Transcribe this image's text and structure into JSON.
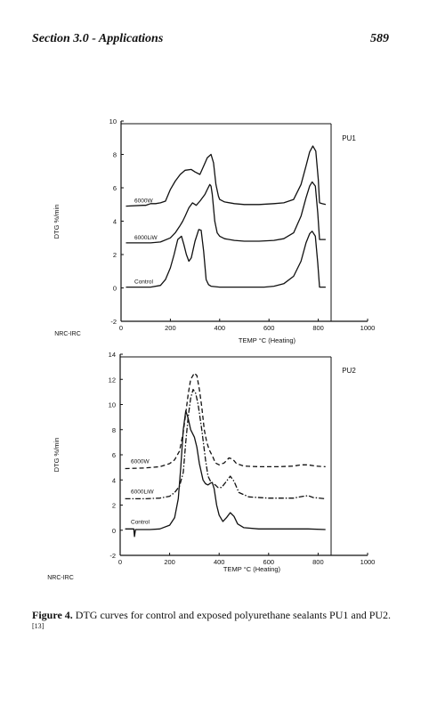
{
  "page": {
    "header_left": "Section 3.0 - Applications",
    "header_right": "589",
    "caption_label": "Figure 4.",
    "caption_text": " DTG curves for control and exposed polyurethane sealants PU1 and PU2.",
    "caption_ref": "[13]"
  },
  "chart_data": [
    {
      "type": "line",
      "panel_label": "PU1",
      "source_label": "NRC-IRC",
      "xlabel": "TEMP °C  (Heating)",
      "ylabel": "DTG %/min",
      "xlim": [
        0,
        1000
      ],
      "ylim": [
        -2,
        10
      ],
      "x_ticks": [
        "0",
        "200",
        "400",
        "600",
        "800",
        "1000"
      ],
      "y_ticks": [
        "-2",
        "0",
        "2",
        "4",
        "6",
        "8",
        "10"
      ],
      "series": [
        {
          "name": "6000W",
          "points": [
            [
              20,
              4.9
            ],
            [
              90,
              4.95
            ],
            [
              100,
              4.95
            ],
            [
              110,
              5.0
            ],
            [
              120,
              5.05
            ],
            [
              140,
              5.05
            ],
            [
              160,
              5.1
            ],
            [
              180,
              5.2
            ],
            [
              200,
              5.9
            ],
            [
              220,
              6.4
            ],
            [
              240,
              6.8
            ],
            [
              260,
              7.05
            ],
            [
              285,
              7.1
            ],
            [
              300,
              6.95
            ],
            [
              320,
              6.8
            ],
            [
              335,
              7.3
            ],
            [
              350,
              7.8
            ],
            [
              365,
              8.0
            ],
            [
              375,
              7.5
            ],
            [
              385,
              6.2
            ],
            [
              395,
              5.5
            ],
            [
              400,
              5.3
            ],
            [
              420,
              5.15
            ],
            [
              460,
              5.05
            ],
            [
              500,
              5.0
            ],
            [
              560,
              5.0
            ],
            [
              620,
              5.05
            ],
            [
              660,
              5.1
            ],
            [
              700,
              5.3
            ],
            [
              730,
              6.2
            ],
            [
              750,
              7.3
            ],
            [
              765,
              8.15
            ],
            [
              778,
              8.5
            ],
            [
              790,
              8.2
            ],
            [
              800,
              6.5
            ],
            [
              805,
              5.1
            ],
            [
              815,
              5.05
            ],
            [
              830,
              5.0
            ]
          ]
        },
        {
          "name": "6000LiW",
          "points": [
            [
              20,
              2.7
            ],
            [
              120,
              2.7
            ],
            [
              160,
              2.75
            ],
            [
              200,
              3.0
            ],
            [
              220,
              3.3
            ],
            [
              240,
              3.75
            ],
            [
              250,
              4.0
            ],
            [
              260,
              4.3
            ],
            [
              275,
              4.8
            ],
            [
              290,
              5.1
            ],
            [
              305,
              4.95
            ],
            [
              320,
              5.2
            ],
            [
              340,
              5.6
            ],
            [
              350,
              5.9
            ],
            [
              360,
              6.2
            ],
            [
              365,
              6.1
            ],
            [
              370,
              5.6
            ],
            [
              380,
              4.0
            ],
            [
              390,
              3.3
            ],
            [
              400,
              3.1
            ],
            [
              420,
              2.95
            ],
            [
              460,
              2.85
            ],
            [
              500,
              2.8
            ],
            [
              560,
              2.8
            ],
            [
              620,
              2.85
            ],
            [
              660,
              2.95
            ],
            [
              700,
              3.3
            ],
            [
              730,
              4.3
            ],
            [
              750,
              5.4
            ],
            [
              765,
              6.1
            ],
            [
              775,
              6.35
            ],
            [
              788,
              6.1
            ],
            [
              798,
              4.5
            ],
            [
              805,
              2.9
            ],
            [
              830,
              2.9
            ]
          ]
        },
        {
          "name": "Control",
          "points": [
            [
              20,
              0.05
            ],
            [
              120,
              0.05
            ],
            [
              160,
              0.15
            ],
            [
              180,
              0.5
            ],
            [
              200,
              1.2
            ],
            [
              215,
              2.0
            ],
            [
              230,
              2.9
            ],
            [
              245,
              3.1
            ],
            [
              255,
              2.6
            ],
            [
              265,
              2.0
            ],
            [
              275,
              1.6
            ],
            [
              285,
              1.8
            ],
            [
              300,
              2.8
            ],
            [
              315,
              3.5
            ],
            [
              325,
              3.45
            ],
            [
              335,
              2.2
            ],
            [
              345,
              0.5
            ],
            [
              355,
              0.2
            ],
            [
              365,
              0.1
            ],
            [
              400,
              0.05
            ],
            [
              460,
              0.05
            ],
            [
              520,
              0.05
            ],
            [
              580,
              0.05
            ],
            [
              620,
              0.1
            ],
            [
              660,
              0.25
            ],
            [
              700,
              0.7
            ],
            [
              730,
              1.6
            ],
            [
              750,
              2.7
            ],
            [
              765,
              3.25
            ],
            [
              775,
              3.4
            ],
            [
              788,
              3.1
            ],
            [
              798,
              1.5
            ],
            [
              805,
              0.05
            ],
            [
              830,
              0.05
            ]
          ]
        }
      ]
    },
    {
      "type": "line",
      "panel_label": "PU2",
      "source_label": "NRC-IRC",
      "xlabel": "TEMP °C (Heating)",
      "ylabel": "DTG %/min",
      "xlim": [
        0,
        1000
      ],
      "ylim": [
        -2,
        14
      ],
      "x_ticks": [
        "0",
        "200",
        "400",
        "600",
        "800",
        "1000"
      ],
      "y_ticks": [
        "-2",
        "0",
        "2",
        "4",
        "6",
        "8",
        "10",
        "12",
        "14"
      ],
      "series": [
        {
          "name": "6000W",
          "style": "dashed",
          "points": [
            [
              20,
              4.9
            ],
            [
              100,
              4.95
            ],
            [
              160,
              5.05
            ],
            [
              200,
              5.3
            ],
            [
              220,
              5.6
            ],
            [
              240,
              6.3
            ],
            [
              255,
              7.8
            ],
            [
              265,
              9.3
            ],
            [
              275,
              10.8
            ],
            [
              285,
              12.0
            ],
            [
              300,
              12.5
            ],
            [
              310,
              12.3
            ],
            [
              320,
              11.2
            ],
            [
              330,
              9.8
            ],
            [
              340,
              8.0
            ],
            [
              350,
              7.0
            ],
            [
              360,
              6.4
            ],
            [
              375,
              5.8
            ],
            [
              385,
              5.35
            ],
            [
              400,
              5.2
            ],
            [
              420,
              5.35
            ],
            [
              440,
              5.75
            ],
            [
              455,
              5.65
            ],
            [
              470,
              5.3
            ],
            [
              500,
              5.1
            ],
            [
              560,
              5.05
            ],
            [
              640,
              5.05
            ],
            [
              700,
              5.1
            ],
            [
              730,
              5.2
            ],
            [
              760,
              5.2
            ],
            [
              790,
              5.1
            ],
            [
              830,
              5.05
            ]
          ]
        },
        {
          "name": "6000LiW",
          "style": "dashdot",
          "points": [
            [
              20,
              2.5
            ],
            [
              100,
              2.5
            ],
            [
              160,
              2.55
            ],
            [
              200,
              2.7
            ],
            [
              220,
              3.0
            ],
            [
              240,
              3.5
            ],
            [
              255,
              4.6
            ],
            [
              265,
              7.0
            ],
            [
              275,
              9.0
            ],
            [
              285,
              10.5
            ],
            [
              295,
              11.2
            ],
            [
              305,
              10.9
            ],
            [
              315,
              10.0
            ],
            [
              330,
              8.0
            ],
            [
              345,
              5.6
            ],
            [
              355,
              4.3
            ],
            [
              365,
              3.9
            ],
            [
              375,
              3.7
            ],
            [
              385,
              3.6
            ],
            [
              395,
              3.4
            ],
            [
              410,
              3.4
            ],
            [
              430,
              3.9
            ],
            [
              445,
              4.3
            ],
            [
              460,
              3.9
            ],
            [
              480,
              3.0
            ],
            [
              520,
              2.65
            ],
            [
              600,
              2.55
            ],
            [
              700,
              2.55
            ],
            [
              740,
              2.7
            ],
            [
              760,
              2.75
            ],
            [
              780,
              2.6
            ],
            [
              830,
              2.5
            ]
          ]
        },
        {
          "name": "Control",
          "style": "solid",
          "points": [
            [
              20,
              0.1
            ],
            [
              55,
              0.1
            ],
            [
              58,
              -0.5
            ],
            [
              62,
              0.05
            ],
            [
              120,
              0.05
            ],
            [
              160,
              0.1
            ],
            [
              200,
              0.4
            ],
            [
              220,
              1.0
            ],
            [
              235,
              2.5
            ],
            [
              245,
              5.0
            ],
            [
              255,
              8.0
            ],
            [
              265,
              9.5
            ],
            [
              275,
              8.9
            ],
            [
              285,
              8.0
            ],
            [
              300,
              7.4
            ],
            [
              310,
              6.6
            ],
            [
              320,
              5.3
            ],
            [
              335,
              4.0
            ],
            [
              345,
              3.7
            ],
            [
              355,
              3.6
            ],
            [
              365,
              3.75
            ],
            [
              372,
              3.8
            ],
            [
              380,
              3.3
            ],
            [
              390,
              2.0
            ],
            [
              400,
              1.2
            ],
            [
              415,
              0.7
            ],
            [
              430,
              1.0
            ],
            [
              445,
              1.4
            ],
            [
              460,
              1.1
            ],
            [
              475,
              0.5
            ],
            [
              500,
              0.2
            ],
            [
              560,
              0.1
            ],
            [
              640,
              0.1
            ],
            [
              700,
              0.1
            ],
            [
              740,
              0.1
            ],
            [
              760,
              0.1
            ],
            [
              830,
              0.05
            ]
          ]
        }
      ]
    }
  ]
}
